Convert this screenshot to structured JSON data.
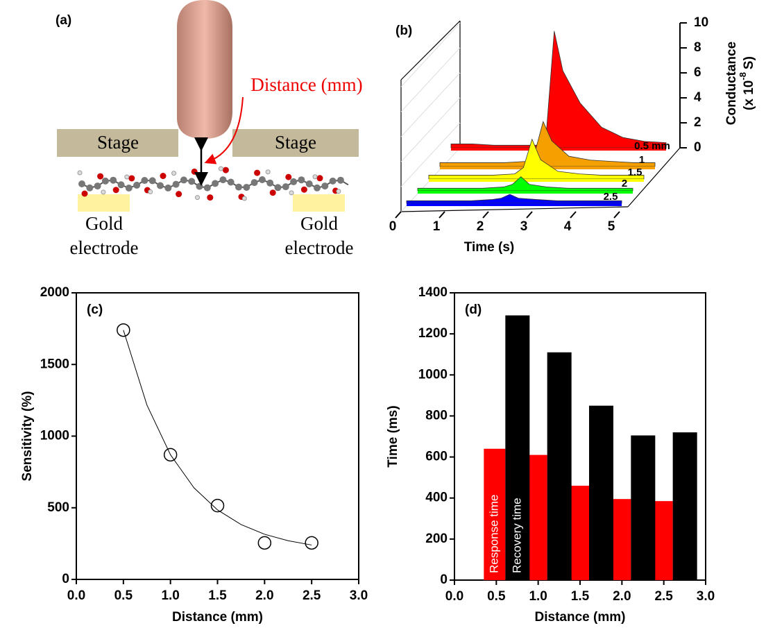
{
  "figure": {
    "panel_label": "(a)",
    "distance_label": "Distance (mm)",
    "stage_left": "Stage",
    "stage_right": "Stage",
    "electrode_left": [
      "Gold",
      "electrode"
    ],
    "electrode_right": [
      "Gold",
      "electrode"
    ]
  },
  "chart_data": [
    {
      "type": "area",
      "panel_label": "(b)",
      "x_label": "Time (s)",
      "z_label": "Conductance",
      "z_unit": {
        "prefix": "(x 10",
        "exponent": "-8",
        "suffix": "S)"
      },
      "x": [
        0,
        0.5,
        1,
        1.5,
        2,
        2.2,
        2.4,
        2.6,
        3,
        3.5,
        4,
        4.5,
        5
      ],
      "xlim": [
        0,
        5
      ],
      "xticks": [
        0,
        1,
        2,
        3,
        4,
        5
      ],
      "zlim": [
        0,
        10
      ],
      "zticks": [
        0,
        2,
        4,
        6,
        8,
        10
      ],
      "series": [
        {
          "name": "0.5 mm",
          "color": "#ff0000",
          "values": [
            0.3,
            0.3,
            0.2,
            0.2,
            0.2,
            0.5,
            9.1,
            6,
            3.5,
            1.6,
            0.8,
            0.5,
            0.4
          ]
        },
        {
          "name": "1",
          "color": "#f5a000",
          "values": [
            0.3,
            0.3,
            0.3,
            0.3,
            0.4,
            1,
            3.5,
            2,
            0.8,
            0.5,
            0.4,
            0.3,
            0.3
          ]
        },
        {
          "name": "1.5",
          "color": "#ffff00",
          "values": [
            0.3,
            0.3,
            0.3,
            0.3,
            0.4,
            0.9,
            3.1,
            1.5,
            0.6,
            0.4,
            0.3,
            0.3,
            0.3
          ]
        },
        {
          "name": "2",
          "color": "#00ff00",
          "values": [
            0.2,
            0.2,
            0.2,
            0.2,
            0.3,
            0.5,
            1.1,
            0.5,
            0.3,
            0.2,
            0.2,
            0.2,
            0.2
          ]
        },
        {
          "name": "2.5",
          "color": "#0000ff",
          "values": [
            0.2,
            0.2,
            0.2,
            0.2,
            0.3,
            0.4,
            0.7,
            0.4,
            0.3,
            0.2,
            0.2,
            0.2,
            0.2
          ]
        }
      ]
    },
    {
      "type": "scatter",
      "panel_label": "(c)",
      "x_label": "Distance (mm)",
      "y_label": "Sensitivity (%)",
      "x": [
        0.5,
        1.0,
        1.5,
        2.0,
        2.5
      ],
      "values": [
        1740,
        870,
        515,
        255,
        255
      ],
      "fit": {
        "x": [
          0.5,
          0.75,
          1,
          1.25,
          1.5,
          1.75,
          2,
          2.25,
          2.5
        ],
        "values": [
          1740,
          1217,
          870,
          639,
          485,
          383,
          315,
          270,
          240
        ]
      },
      "xlim": [
        0,
        3
      ],
      "ylim": [
        0,
        2000
      ],
      "xticks": [
        {
          "value": 0,
          "label": "0.0"
        },
        0.5,
        {
          "value": 1,
          "label": "1.0"
        },
        1.5,
        {
          "value": 2,
          "label": "2.0"
        },
        2.5,
        {
          "value": 3,
          "label": "3.0"
        }
      ],
      "yticks": [
        0,
        500,
        1000,
        1500,
        2000
      ]
    },
    {
      "type": "bar",
      "panel_label": "(d)",
      "x_label": "Distance (mm)",
      "y_label": "Time (ms)",
      "x": [
        0.5,
        1.0,
        1.5,
        2.0,
        2.5
      ],
      "series": [
        {
          "name": "Response time",
          "color": "#ff0000",
          "values": [
            640,
            610,
            460,
            395,
            385
          ]
        },
        {
          "name": "Recovery time",
          "color": "#000000",
          "values": [
            1290,
            1110,
            850,
            705,
            720
          ]
        }
      ],
      "xlim": [
        0,
        3
      ],
      "ylim": [
        0,
        1400
      ],
      "xticks": [
        {
          "value": 0,
          "label": "0.0"
        },
        0.5,
        {
          "value": 1,
          "label": "1.0"
        },
        1.5,
        {
          "value": 2,
          "label": "2.0"
        },
        2.5,
        {
          "value": 3,
          "label": "3.0"
        }
      ],
      "yticks": [
        0,
        200,
        400,
        600,
        800,
        1000,
        1200,
        1400
      ]
    }
  ]
}
